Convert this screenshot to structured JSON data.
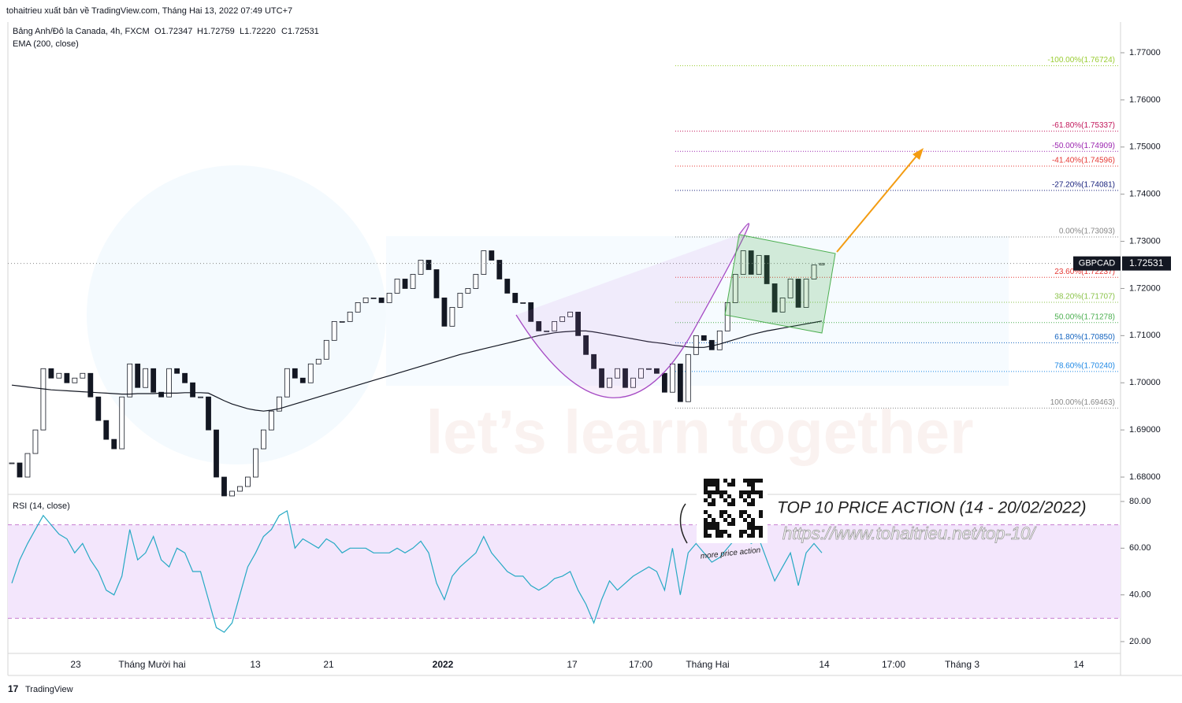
{
  "header": {
    "published": "tohaitrieu xuất bản về TradingView.com, Tháng Hai 13, 2022 07:49 UTC+7",
    "symbol": "Bảng Anh/Đô la Canada, 4h, FXCM",
    "open": "O1.72347",
    "high": "H1.72759",
    "low": "L1.72220",
    "close": "C1.72531",
    "indicator": "EMA (200, close)"
  },
  "price_pane": {
    "ylim": [
      1.67633,
      1.77651
    ],
    "yticks": [
      {
        "value": 1.68,
        "label": "1.68000"
      },
      {
        "value": 1.69,
        "label": "1.69000"
      },
      {
        "value": 1.7,
        "label": "1.70000"
      },
      {
        "value": 1.71,
        "label": "1.71000"
      },
      {
        "value": 1.72,
        "label": "1.72000"
      },
      {
        "value": 1.73,
        "label": "1.73000"
      },
      {
        "value": 1.74,
        "label": "1.74000"
      },
      {
        "value": 1.75,
        "label": "1.75000"
      },
      {
        "value": 1.76,
        "label": "1.76000"
      },
      {
        "value": 1.77,
        "label": "1.77000"
      }
    ],
    "closes": [
      1.683,
      1.68,
      1.685,
      1.69,
      1.703,
      1.701,
      1.702,
      1.7,
      1.701,
      1.702,
      1.697,
      1.692,
      1.688,
      1.686,
      1.697,
      1.704,
      1.699,
      1.703,
      1.698,
      1.697,
      1.703,
      1.702,
      1.7,
      1.697,
      1.697,
      1.69,
      1.68,
      1.676,
      1.677,
      1.678,
      1.68,
      1.686,
      1.69,
      1.694,
      1.697,
      1.703,
      1.701,
      1.7,
      1.704,
      1.705,
      1.709,
      1.713,
      1.713,
      1.715,
      1.717,
      1.718,
      1.718,
      1.717,
      1.719,
      1.722,
      1.72,
      1.723,
      1.726,
      1.724,
      1.718,
      1.712,
      1.716,
      1.719,
      1.72,
      1.723,
      1.728,
      1.726,
      1.722,
      1.719,
      1.717,
      1.717,
      1.713,
      1.711,
      1.711,
      1.713,
      1.714,
      1.715,
      1.71,
      1.706,
      1.703,
      1.699,
      1.701,
      1.703,
      1.699,
      1.701,
      1.703,
      1.703,
      1.702,
      1.698,
      1.704,
      1.696,
      1.706,
      1.71,
      1.709,
      1.707,
      1.711,
      1.717,
      1.723,
      1.728,
      1.723,
      1.727,
      1.721,
      1.715,
      1.718,
      1.722,
      1.716,
      1.722,
      1.725,
      1.72531
    ],
    "ema": [
      1.6995,
      1.6993,
      1.6991,
      1.6989,
      1.6987,
      1.6985,
      1.6984,
      1.6983,
      1.6982,
      1.6981,
      1.698,
      1.6979,
      1.6978,
      1.6977,
      1.6976,
      1.6976,
      1.6977,
      1.6977,
      1.6977,
      1.6978,
      1.6978,
      1.6978,
      1.6979,
      1.6979,
      1.6979,
      1.6978,
      1.697,
      1.6962,
      1.6955,
      1.695,
      1.6945,
      1.6942,
      1.694,
      1.6942,
      1.6945,
      1.695,
      1.6955,
      1.696,
      1.6965,
      1.697,
      1.6975,
      1.698,
      1.6985,
      1.699,
      1.6995,
      1.7,
      1.7005,
      1.701,
      1.7015,
      1.702,
      1.7025,
      1.703,
      1.7035,
      1.704,
      1.7045,
      1.705,
      1.7055,
      1.706,
      1.7064,
      1.7068,
      1.7072,
      1.7076,
      1.708,
      1.7084,
      1.7088,
      1.7092,
      1.7096,
      1.71,
      1.7103,
      1.7106,
      1.7108,
      1.7109,
      1.711,
      1.711,
      1.7108,
      1.7105,
      1.7102,
      1.7099,
      1.7096,
      1.7093,
      1.709,
      1.7087,
      1.7085,
      1.7083,
      1.708,
      1.7078,
      1.7076,
      1.7075,
      1.7075,
      1.7078,
      1.7082,
      1.7087,
      1.7092,
      1.7097,
      1.7102,
      1.7106,
      1.711,
      1.7113,
      1.7116,
      1.7119,
      1.7122,
      1.7125,
      1.7128,
      1.7131
    ],
    "last_price": {
      "symbol": "GBPCAD",
      "value": 1.72531,
      "label": "1.72531"
    },
    "fib_levels": [
      {
        "label": "-100.00%(1.76724)",
        "value": 1.76724,
        "color": "#9acd32"
      },
      {
        "label": "-61.80%(1.75337)",
        "value": 1.75337,
        "color": "#c2185b"
      },
      {
        "label": "-50.00%(1.74909)",
        "value": 1.74909,
        "color": "#9c27b0"
      },
      {
        "label": "-41.40%(1.74596)",
        "value": 1.74596,
        "color": "#e53935"
      },
      {
        "label": "-27.20%(1.74081)",
        "value": 1.74081,
        "color": "#1a237e"
      },
      {
        "label": "0.00%(1.73093)",
        "value": 1.73093,
        "color": "#888888"
      },
      {
        "label": "23.60%(1.72237)",
        "value": 1.72237,
        "color": "#e53935"
      },
      {
        "label": "38.20%(1.71707)",
        "value": 1.71707,
        "color": "#8bc34a"
      },
      {
        "label": "50.00%(1.71278)",
        "value": 1.71278,
        "color": "#4caf50"
      },
      {
        "label": "61.80%(1.70850)",
        "value": 1.7085,
        "color": "#1565c0"
      },
      {
        "label": "78.60%(1.70240)",
        "value": 1.7024,
        "color": "#1e88e5"
      },
      {
        "label": "100.00%(1.69463)",
        "value": 1.69463,
        "color": "#888888"
      }
    ]
  },
  "rsi_pane": {
    "title": "RSI (14, close)",
    "ylim": [
      14.94,
      82.36
    ],
    "yticks": [
      {
        "value": 20,
        "label": "20.00"
      },
      {
        "value": 40,
        "label": "40.00"
      },
      {
        "value": 60,
        "label": "60.00"
      },
      {
        "value": 80,
        "label": "80.00"
      }
    ],
    "band": [
      30,
      70
    ],
    "values": [
      45,
      55,
      62,
      68,
      74,
      70,
      66,
      64,
      58,
      62,
      55,
      50,
      42,
      40,
      48,
      68,
      55,
      58,
      65,
      55,
      52,
      60,
      58,
      50,
      50,
      38,
      26,
      24,
      28,
      40,
      52,
      58,
      65,
      68,
      74,
      76,
      60,
      64,
      62,
      60,
      64,
      62,
      58,
      60,
      60,
      60,
      58,
      58,
      58,
      60,
      58,
      60,
      63,
      58,
      45,
      38,
      48,
      52,
      55,
      58,
      65,
      58,
      54,
      50,
      48,
      48,
      44,
      42,
      44,
      47,
      48,
      50,
      42,
      36,
      28,
      38,
      46,
      42,
      45,
      48,
      50,
      52,
      50,
      42,
      60,
      40,
      58,
      62,
      58,
      54,
      56,
      60,
      64,
      68,
      62,
      64,
      55,
      46,
      52,
      58,
      44,
      58,
      62,
      58
    ]
  },
  "time_axis": [
    "23",
    "Tháng Mười hai",
    "13",
    "21",
    "2022",
    "17",
    "17:00",
    "Tháng Hai",
    "14",
    "17:00",
    "Tháng 3",
    "14"
  ],
  "promo": {
    "title": "TOP 10 PRICE ACTION (14 - 20/02/2022)",
    "url": "https://www.tohaitrieu.net/top-10/",
    "note": "more price action"
  },
  "watermark": "let’s learn together",
  "footer": "TradingView"
}
